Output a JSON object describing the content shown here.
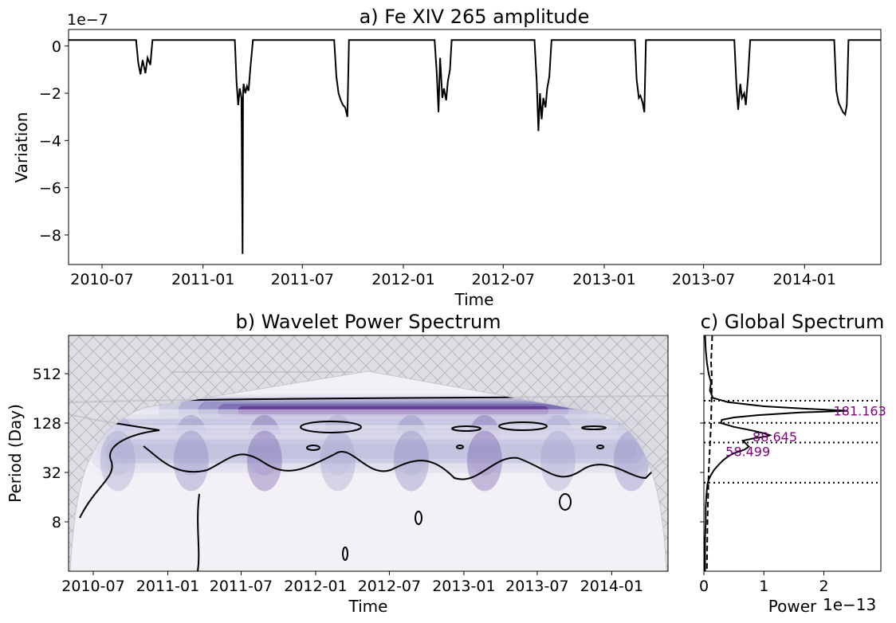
{
  "chart_data": [
    {
      "panel": "a",
      "type": "line",
      "title": "a) Fe XIV 265 amplitude",
      "xlabel": "Time",
      "ylabel": "Variation",
      "y_offset_text": "1e−7",
      "y_scale_factor": 1e-07,
      "x_tick_labels": [
        "2010-07",
        "2011-01",
        "2011-07",
        "2012-01",
        "2012-07",
        "2013-01",
        "2013-07",
        "2014-01"
      ],
      "y_tick_labels": [
        "0",
        "−2",
        "−4",
        "−6",
        "−8"
      ],
      "y_tick_values": [
        0,
        -2,
        -4,
        -6,
        -8
      ],
      "xlim": [
        "2010-05-01",
        "2014-05-20"
      ],
      "ylim": [
        -9.25,
        0.7
      ],
      "series": [
        {
          "color": "#000000",
          "x": [
            "2010-05-01",
            "2010-09-01",
            "2010-09-05",
            "2010-09-09",
            "2010-09-13",
            "2010-09-18",
            "2010-09-22",
            "2010-09-27",
            "2010-10-01",
            "2011-02-28",
            "2011-03-03",
            "2011-03-06",
            "2011-03-09",
            "2011-03-12",
            "2011-03-14",
            "2011-03-15",
            "2011-03-16",
            "2011-03-19",
            "2011-03-22",
            "2011-03-25",
            "2011-03-28",
            "2011-04-02",
            "2011-04-04",
            "2011-08-28",
            "2011-09-01",
            "2011-09-05",
            "2011-09-09",
            "2011-09-13",
            "2011-09-17",
            "2011-09-21",
            "2011-09-24",
            "2012-02-27",
            "2012-03-02",
            "2012-03-05",
            "2012-03-08",
            "2012-03-12",
            "2012-03-15",
            "2012-03-19",
            "2012-03-22",
            "2012-03-26",
            "2012-03-29",
            "2012-08-27",
            "2012-08-31",
            "2012-09-03",
            "2012-09-06",
            "2012-09-09",
            "2012-09-12",
            "2012-09-16",
            "2012-09-19",
            "2012-09-23",
            "2012-09-27",
            "2013-02-26",
            "2013-03-01",
            "2013-03-05",
            "2013-03-08",
            "2013-03-12",
            "2013-03-15",
            "2013-03-18",
            "2013-08-26",
            "2013-08-30",
            "2013-09-02",
            "2013-09-06",
            "2013-09-09",
            "2013-09-13",
            "2013-09-16",
            "2013-09-20",
            "2013-09-24",
            "2014-02-24",
            "2014-02-28",
            "2014-03-04",
            "2014-03-08",
            "2014-03-12",
            "2014-03-16",
            "2014-03-19",
            "2014-03-22",
            "2014-05-20"
          ],
          "y": [
            0.25,
            0.25,
            -0.7,
            -1.2,
            -0.6,
            -1.15,
            -0.5,
            -0.8,
            0.25,
            0.25,
            -1.5,
            -2.5,
            -1.8,
            -2.2,
            -8.8,
            -2.0,
            -1.6,
            -2.0,
            -1.7,
            -1.9,
            -1.0,
            0.25,
            0.25,
            0.25,
            -1.3,
            -2.0,
            -2.3,
            -2.5,
            -2.6,
            -3.0,
            0.25,
            0.25,
            -1.2,
            -2.8,
            -0.5,
            -2.2,
            -1.8,
            -2.3,
            -1.5,
            -1.0,
            0.25,
            0.25,
            -1.5,
            -3.6,
            -2.0,
            -3.1,
            -2.2,
            -2.6,
            -1.8,
            -1.3,
            0.25,
            0.25,
            -1.4,
            -2.2,
            -2.1,
            -2.4,
            -2.8,
            0.25,
            0.25,
            -1.7,
            -2.7,
            -1.6,
            -2.2,
            -2.0,
            -2.5,
            -1.3,
            0.25,
            0.25,
            -1.9,
            -2.4,
            -2.6,
            -2.8,
            -2.9,
            -2.5,
            0.25,
            0.25
          ]
        }
      ]
    },
    {
      "panel": "b",
      "type": "heatmap",
      "title": "b) Wavelet Power Spectrum",
      "xlabel": "Time",
      "ylabel": "Period (Day)",
      "x_tick_labels": [
        "2010-07",
        "2011-01",
        "2011-07",
        "2012-01",
        "2012-07",
        "2013-01",
        "2013-07",
        "2014-01"
      ],
      "y_tick_labels": [
        "512",
        "128",
        "32",
        "8"
      ],
      "y_tick_values": [
        512,
        128,
        32,
        8
      ],
      "y_scale": "log2",
      "y_inverted": true,
      "xlim": [
        "2010-05-01",
        "2014-05-20"
      ],
      "ylim": [
        2,
        1500
      ],
      "colormap": "Purples",
      "dominant_bands": [
        {
          "period": 181,
          "strength": 1.0,
          "x_range": [
            "2010-09-01",
            "2014-05-20"
          ]
        },
        {
          "period": 90,
          "strength": 0.55,
          "x_range": [
            "2010-06-01",
            "2014-05-20"
          ]
        },
        {
          "period": 58,
          "strength": 0.4,
          "x_range": [
            "2010-06-01",
            "2014-05-20"
          ]
        }
      ],
      "cone_of_influence": "hatched region"
    },
    {
      "panel": "c",
      "type": "line",
      "title": "c) Global Spectrum",
      "xlabel": "Power",
      "x_offset_text": "1e−13",
      "x_scale_factor": 1e-13,
      "x_tick_labels": [
        "0",
        "1",
        "2"
      ],
      "x_tick_values": [
        0,
        1,
        2
      ],
      "xlim": [
        0,
        2.95
      ],
      "ylim": [
        2,
        1500
      ],
      "y_scale": "log2",
      "series": [
        {
          "style": "solid",
          "period": [
            1500,
            1000,
            700,
            512,
            400,
            320,
            260,
            230,
            205,
            190,
            181,
            172,
            160,
            150,
            140,
            128,
            115,
            104,
            96,
            91,
            88,
            84,
            78,
            72,
            66,
            61,
            58,
            55,
            50,
            45,
            40,
            35,
            30,
            26,
            23,
            20,
            16,
            12,
            8,
            5,
            3,
            2
          ],
          "power": [
            0.02,
            0.03,
            0.05,
            0.08,
            0.12,
            0.1,
            0.15,
            0.4,
            1.0,
            1.8,
            2.4,
            1.6,
            0.9,
            0.5,
            0.3,
            0.28,
            0.5,
            0.8,
            1.0,
            1.1,
            1.05,
            0.85,
            0.65,
            0.7,
            0.75,
            0.68,
            0.6,
            0.5,
            0.4,
            0.32,
            0.25,
            0.18,
            0.12,
            0.08,
            0.06,
            0.05,
            0.04,
            0.03,
            0.03,
            0.02,
            0.02,
            0.02
          ]
        },
        {
          "style": "dashed",
          "period": [
            1500,
            700,
            512,
            300,
            128,
            64,
            32,
            8,
            2
          ],
          "power": [
            0.14,
            0.12,
            0.13,
            0.13,
            0.12,
            0.1,
            0.08,
            0.06,
            0.05
          ]
        }
      ],
      "reference_lines_period": [
        240,
        129,
        74,
        24
      ],
      "peak_labels": [
        {
          "period": 181,
          "label": "181.163"
        },
        {
          "period": 88,
          "label": "88.645"
        },
        {
          "period": 58,
          "label": "58.499"
        }
      ]
    }
  ]
}
